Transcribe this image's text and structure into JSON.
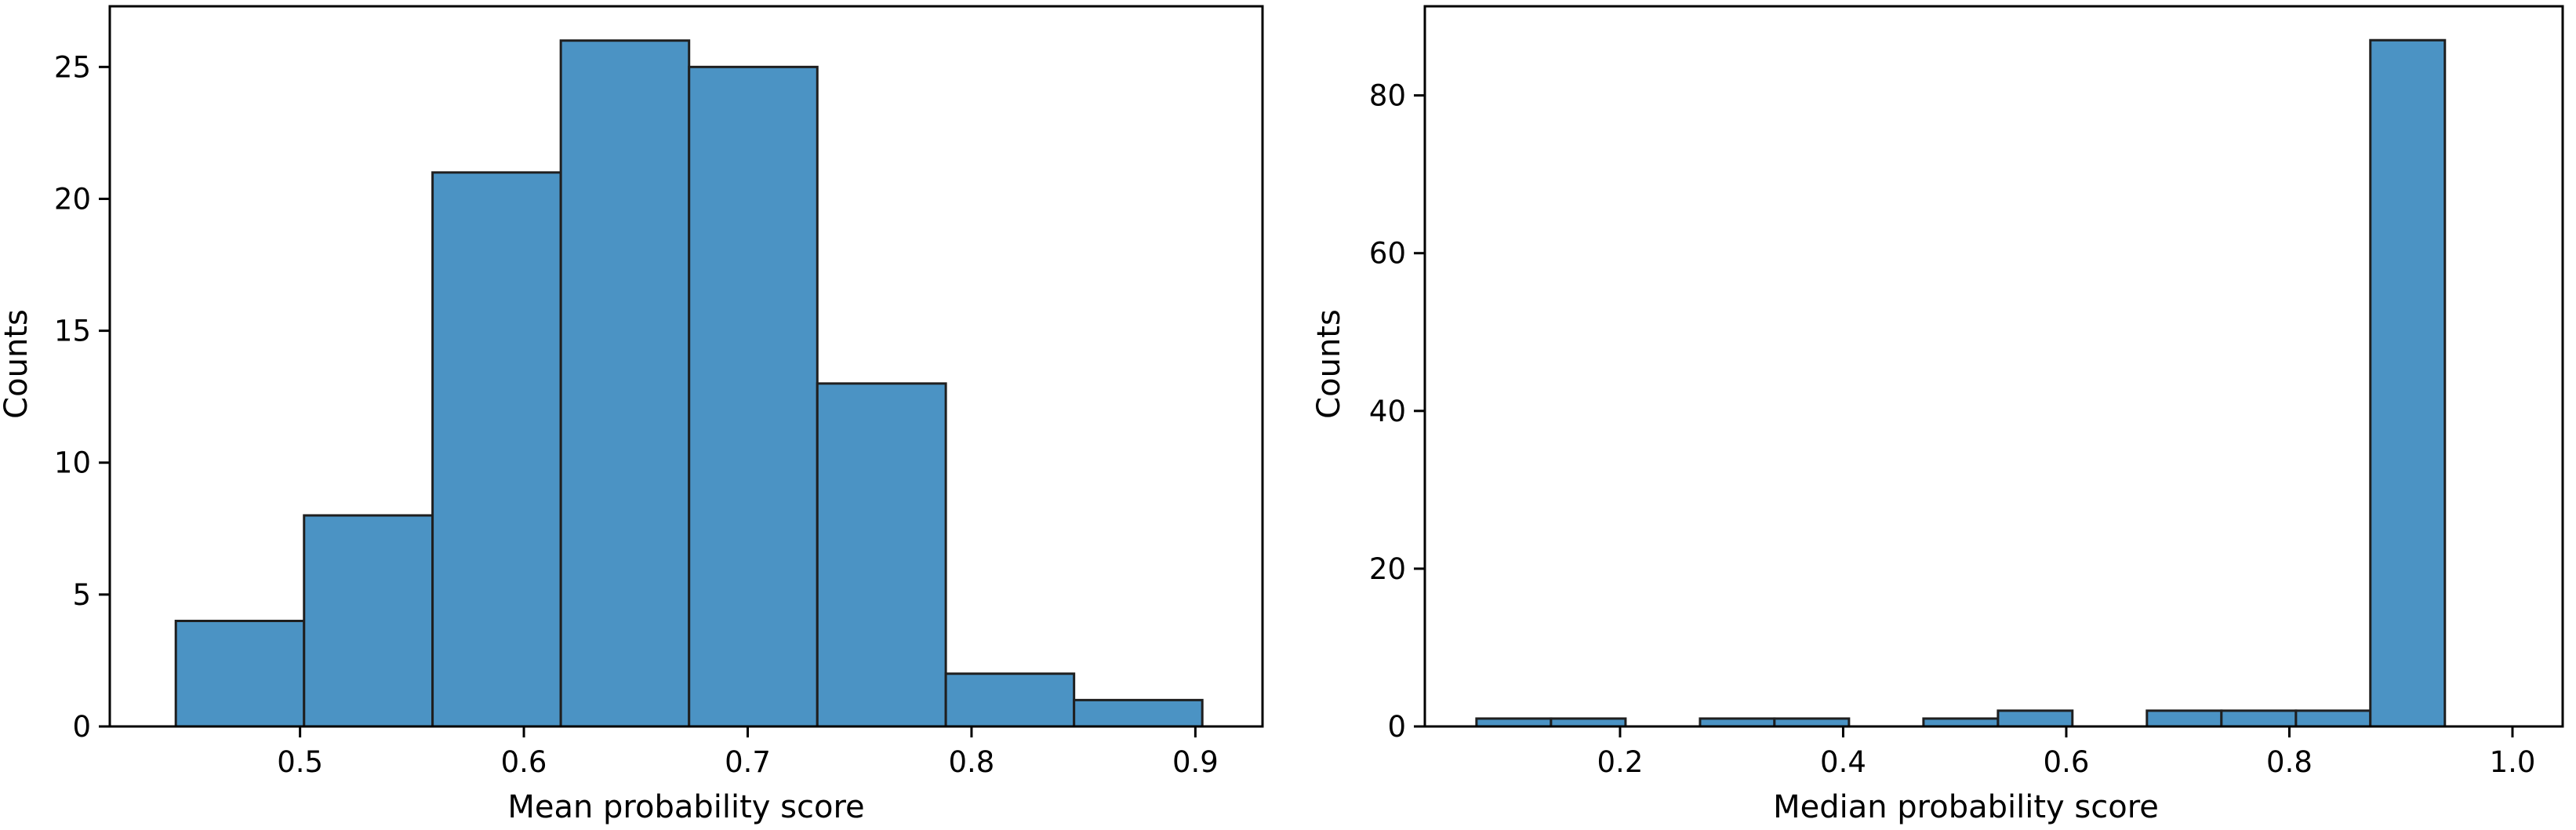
{
  "colors": {
    "bar_fill": "#4b93c4",
    "bar_edge": "#1f1f1f",
    "axis": "#000000",
    "background": "#ffffff"
  },
  "chart_data": [
    {
      "type": "bar",
      "subtype": "histogram",
      "xlabel": "Mean probability score",
      "ylabel": "Counts",
      "xlim": [
        0.415,
        0.93
      ],
      "ylim": [
        0,
        27.3
      ],
      "xticks": [
        0.5,
        0.6,
        0.7,
        0.8,
        0.9
      ],
      "xtick_labels": [
        "0.5",
        "0.6",
        "0.7",
        "0.8",
        "0.9"
      ],
      "yticks": [
        0,
        5,
        10,
        15,
        20,
        25
      ],
      "ytick_labels": [
        "0",
        "5",
        "10",
        "15",
        "20",
        "25"
      ],
      "grid": false,
      "bins": [
        {
          "x0": 0.4445,
          "x1": 0.5018,
          "count": 4
        },
        {
          "x0": 0.5018,
          "x1": 0.5592,
          "count": 8
        },
        {
          "x0": 0.5592,
          "x1": 0.6165,
          "count": 21
        },
        {
          "x0": 0.6165,
          "x1": 0.6738,
          "count": 26
        },
        {
          "x0": 0.6738,
          "x1": 0.7311,
          "count": 25
        },
        {
          "x0": 0.7311,
          "x1": 0.7885,
          "count": 13
        },
        {
          "x0": 0.7885,
          "x1": 0.8458,
          "count": 2
        },
        {
          "x0": 0.8458,
          "x1": 0.9031,
          "count": 1
        }
      ]
    },
    {
      "type": "bar",
      "subtype": "histogram",
      "xlabel": "Median probability score",
      "ylabel": "Counts",
      "xlim": [
        0.025,
        1.045
      ],
      "ylim": [
        0,
        91.3
      ],
      "xticks": [
        0.2,
        0.4,
        0.6,
        0.8,
        1.0
      ],
      "xtick_labels": [
        "0.2",
        "0.4",
        "0.6",
        "0.8",
        "1.0"
      ],
      "yticks": [
        0,
        20,
        40,
        60,
        80
      ],
      "ytick_labels": [
        "0",
        "20",
        "40",
        "60",
        "80"
      ],
      "grid": false,
      "bins": [
        {
          "x0": 0.0713,
          "x1": 0.1381,
          "count": 1
        },
        {
          "x0": 0.1381,
          "x1": 0.2049,
          "count": 1
        },
        {
          "x0": 0.2049,
          "x1": 0.2717,
          "count": 0
        },
        {
          "x0": 0.2717,
          "x1": 0.3384,
          "count": 1
        },
        {
          "x0": 0.3384,
          "x1": 0.4052,
          "count": 1
        },
        {
          "x0": 0.4052,
          "x1": 0.472,
          "count": 0
        },
        {
          "x0": 0.472,
          "x1": 0.5388,
          "count": 1
        },
        {
          "x0": 0.5388,
          "x1": 0.6055,
          "count": 2
        },
        {
          "x0": 0.6055,
          "x1": 0.6723,
          "count": 0
        },
        {
          "x0": 0.6723,
          "x1": 0.7391,
          "count": 2
        },
        {
          "x0": 0.7391,
          "x1": 0.8059,
          "count": 2
        },
        {
          "x0": 0.8059,
          "x1": 0.8726,
          "count": 2
        },
        {
          "x0": 0.8726,
          "x1": 0.9394,
          "count": 87
        }
      ]
    }
  ]
}
